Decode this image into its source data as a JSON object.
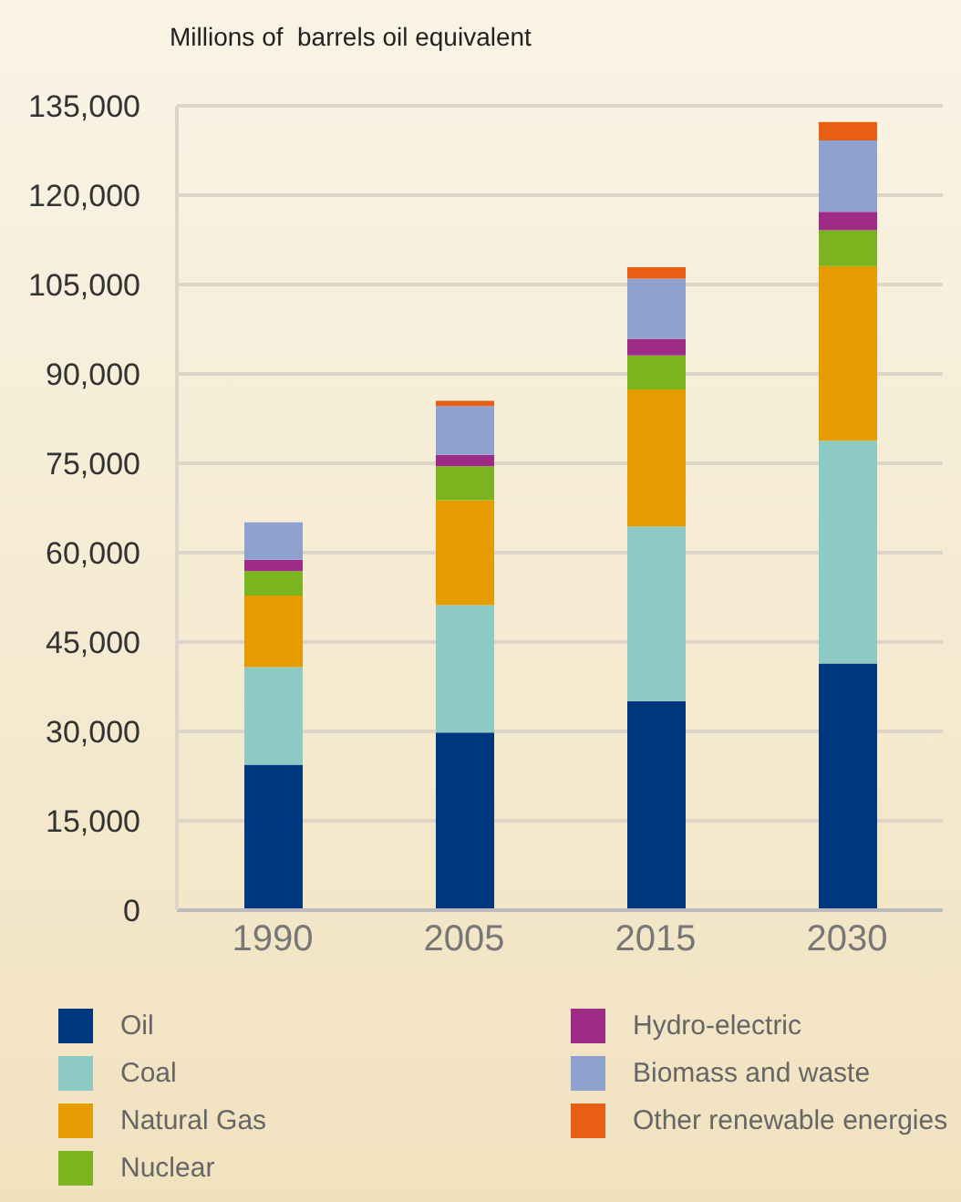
{
  "chart_data": {
    "type": "bar",
    "stacked": true,
    "ylabel": "Millions of  barrels oil equivalent",
    "categories": [
      "1990",
      "2005",
      "2015",
      "2030"
    ],
    "series": [
      {
        "name": "Oil",
        "color": "#00387f",
        "values": [
          24400,
          29800,
          35100,
          41400
        ]
      },
      {
        "name": "Coal",
        "color": "#8ecac4",
        "values": [
          16400,
          21400,
          29300,
          37400
        ]
      },
      {
        "name": "Natural Gas",
        "color": "#e59c00",
        "values": [
          12000,
          17600,
          23000,
          29300
        ]
      },
      {
        "name": "Nuclear",
        "color": "#7ab51f",
        "values": [
          4100,
          5700,
          5700,
          6000
        ]
      },
      {
        "name": "Hydro-electric",
        "color": "#9e2c86",
        "values": [
          1900,
          1900,
          2800,
          3100
        ]
      },
      {
        "name": "Biomass and waste",
        "color": "#8fa2cf",
        "values": [
          6300,
          8200,
          10100,
          12000
        ]
      },
      {
        "name": "Other renewable energies",
        "color": "#e85f13",
        "values": [
          0,
          900,
          1900,
          3100
        ]
      }
    ],
    "ylim": [
      0,
      135000
    ],
    "yticks": [
      0,
      {
        "value": 15000,
        "label": "15,000"
      },
      {
        "value": 30000,
        "label": "30,000"
      },
      {
        "value": 45000,
        "label": "45,000"
      },
      {
        "value": 60000,
        "label": "60,000"
      },
      {
        "value": 75000,
        "label": "75,000"
      },
      {
        "value": 90000,
        "label": "90,000"
      },
      {
        "value": 105000,
        "label": "105,000"
      },
      {
        "value": 120000,
        "label": "120,000"
      },
      {
        "value": 135000,
        "label": "135,000"
      }
    ],
    "grid": "y",
    "legend": "bottom"
  }
}
